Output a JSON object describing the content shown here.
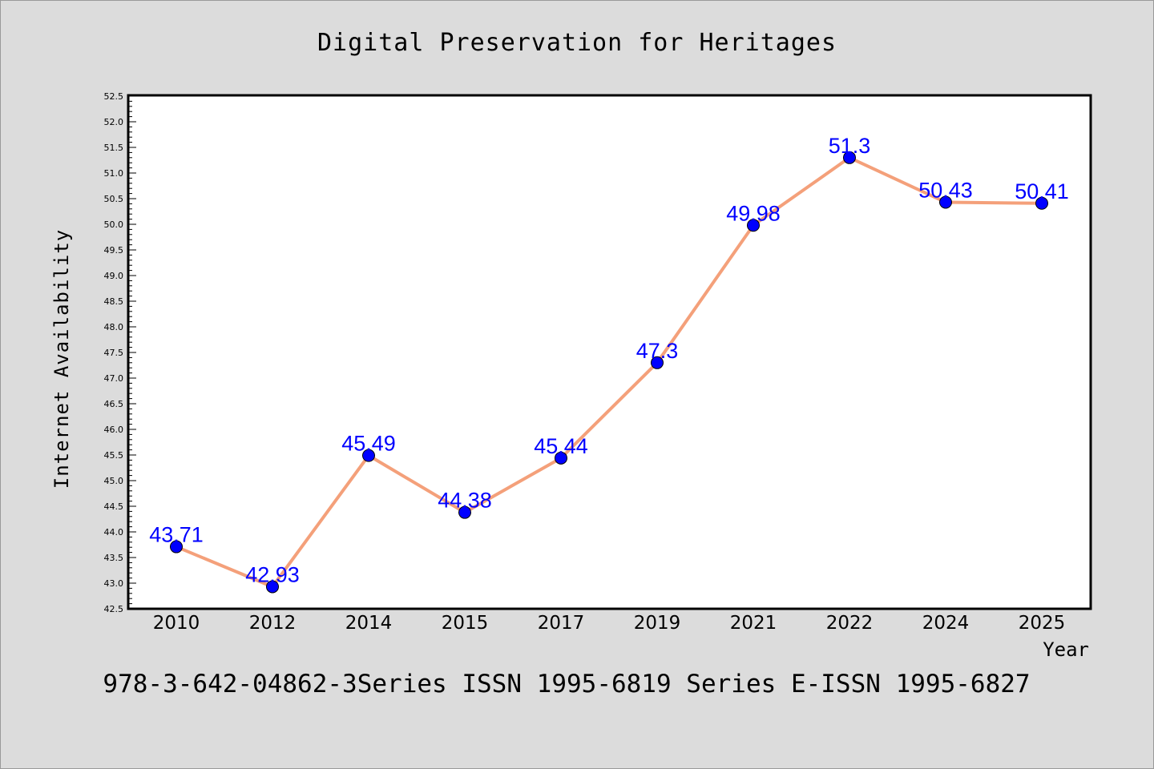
{
  "chart_data": {
    "type": "line",
    "title": "Digital Preservation for Heritages",
    "xlabel": "Year",
    "ylabel": "Internet Availability",
    "categories": [
      "2010",
      "2012",
      "2014",
      "2015",
      "2017",
      "2019",
      "2021",
      "2022",
      "2024",
      "2025"
    ],
    "series": [
      {
        "values": [
          43.71,
          42.93,
          45.49,
          44.38,
          45.44,
          47.3,
          49.98,
          51.3,
          50.43,
          50.41
        ],
        "data_labels": [
          "43.71",
          "42.93",
          "45.49",
          "44.38",
          "45.44",
          "47.3",
          "49.98",
          "51.3",
          "50.43",
          "50.41"
        ],
        "line_color": "#f4a07a",
        "marker_color": "#0000ff"
      }
    ],
    "ylim": [
      42.5,
      52.5
    ],
    "ytick_labels": [
      "42.5",
      "43.0",
      "43.5",
      "44.0",
      "44.5",
      "45.0",
      "45.5",
      "46.0",
      "46.5",
      "47.0",
      "47.5",
      "48.0",
      "48.5",
      "49.0",
      "49.5",
      "50.0",
      "50.5",
      "51.0",
      "51.5",
      "52.0",
      "52.5"
    ],
    "grid": false,
    "legend": "none"
  },
  "caption": "978-3-642-04862-3Series ISSN 1995-6819 Series E-ISSN 1995-6827",
  "colors": {
    "background": "#dcdcdc",
    "plot_background": "#ffffff",
    "line": "#f4a07a",
    "marker": "#0000ff",
    "data_label": "#0000ff"
  }
}
